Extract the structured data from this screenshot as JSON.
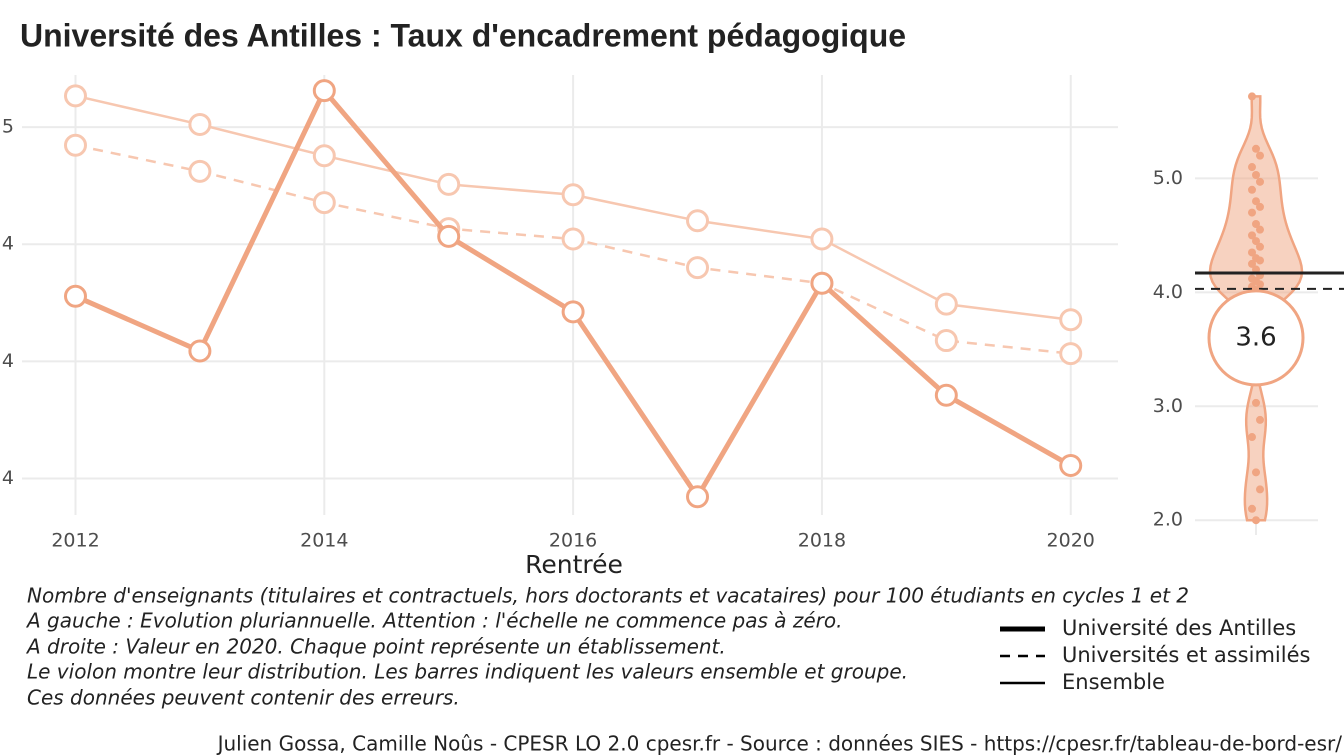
{
  "chart_data": [
    {
      "type": "line",
      "title": "Université des Antilles  :  Taux d'encadrement pédagogique",
      "xlabel": "Rentrée",
      "x": [
        2012,
        2013,
        2014,
        2015,
        2016,
        2017,
        2018,
        2019,
        2020
      ],
      "xlim": [
        2011.57,
        2020.38
      ],
      "xticks": [
        2012,
        2014,
        2016,
        2018,
        2020
      ],
      "ylim": [
        3.41,
        5.1
      ],
      "yticks": [
        {
          "value": 3.55,
          "label": "4"
        },
        {
          "value": 4.0,
          "label": "4"
        },
        {
          "value": 4.45,
          "label": "4"
        },
        {
          "value": 4.9,
          "label": "5"
        }
      ],
      "grid": true,
      "legend_position": "bottom-right",
      "series": [
        {
          "name": "Université des Antilles",
          "color": "#f0a582",
          "line_style": "solid",
          "emphasis": true,
          "values": [
            4.25,
            4.04,
            5.04,
            4.48,
            4.19,
            3.48,
            4.3,
            3.87,
            3.6
          ]
        },
        {
          "name": "Universités et assimilés",
          "color": "#f7c7b0",
          "line_style": "dashed",
          "emphasis": false,
          "values": [
            4.83,
            4.73,
            4.61,
            4.51,
            4.47,
            4.36,
            4.3,
            4.08,
            4.03
          ]
        },
        {
          "name": "Ensemble",
          "color": "#f7c7b0",
          "line_style": "solid",
          "emphasis": false,
          "values": [
            5.02,
            4.91,
            4.79,
            4.68,
            4.64,
            4.54,
            4.47,
            4.22,
            4.16
          ]
        }
      ]
    },
    {
      "type": "violin",
      "color": "#f0a582",
      "values": [
        5.72,
        5.26,
        5.2,
        5.1,
        5.03,
        4.97,
        4.9,
        4.8,
        4.75,
        4.7,
        4.6,
        4.55,
        4.5,
        4.45,
        4.4,
        4.35,
        4.3,
        4.28,
        4.25,
        4.2,
        4.15,
        4.12,
        4.1,
        4.07,
        4.05,
        4.02,
        4.0,
        3.95,
        3.03,
        2.88,
        2.73,
        2.42,
        2.27,
        2.1,
        2.0
      ],
      "ylim": [
        1.87,
        5.82
      ],
      "yticks": [
        {
          "value": 2,
          "label": "2.0"
        },
        {
          "value": 3,
          "label": "3.0"
        },
        {
          "value": 4,
          "label": "4.0"
        },
        {
          "value": 5,
          "label": "5.0"
        }
      ],
      "grid": true,
      "reference_lines": [
        {
          "value": 4.17,
          "style": "solid"
        },
        {
          "value": 4.03,
          "style": "dashed"
        }
      ],
      "highlight": 3.6
    }
  ],
  "notes": [
    "Nombre d'enseignants (titulaires et contractuels, hors doctorants et vacataires) pour 100 étudiants en cycles 1 et 2",
    "A gauche : Evolution pluriannuelle. Attention : l'échelle ne commence pas à zéro.",
    "A droite : Valeur en 2020. Chaque point représente un établissement.",
    "Le violon montre leur distribution. Les barres indiquent les valeurs ensemble et groupe.",
    "Ces données peuvent contenir des erreurs."
  ],
  "caption": "Julien Gossa, Camille Noûs - CPESR LO 2.0 cpesr.fr - Source : données SIES - https://cpesr.fr/tableau-de-bord-esr/"
}
